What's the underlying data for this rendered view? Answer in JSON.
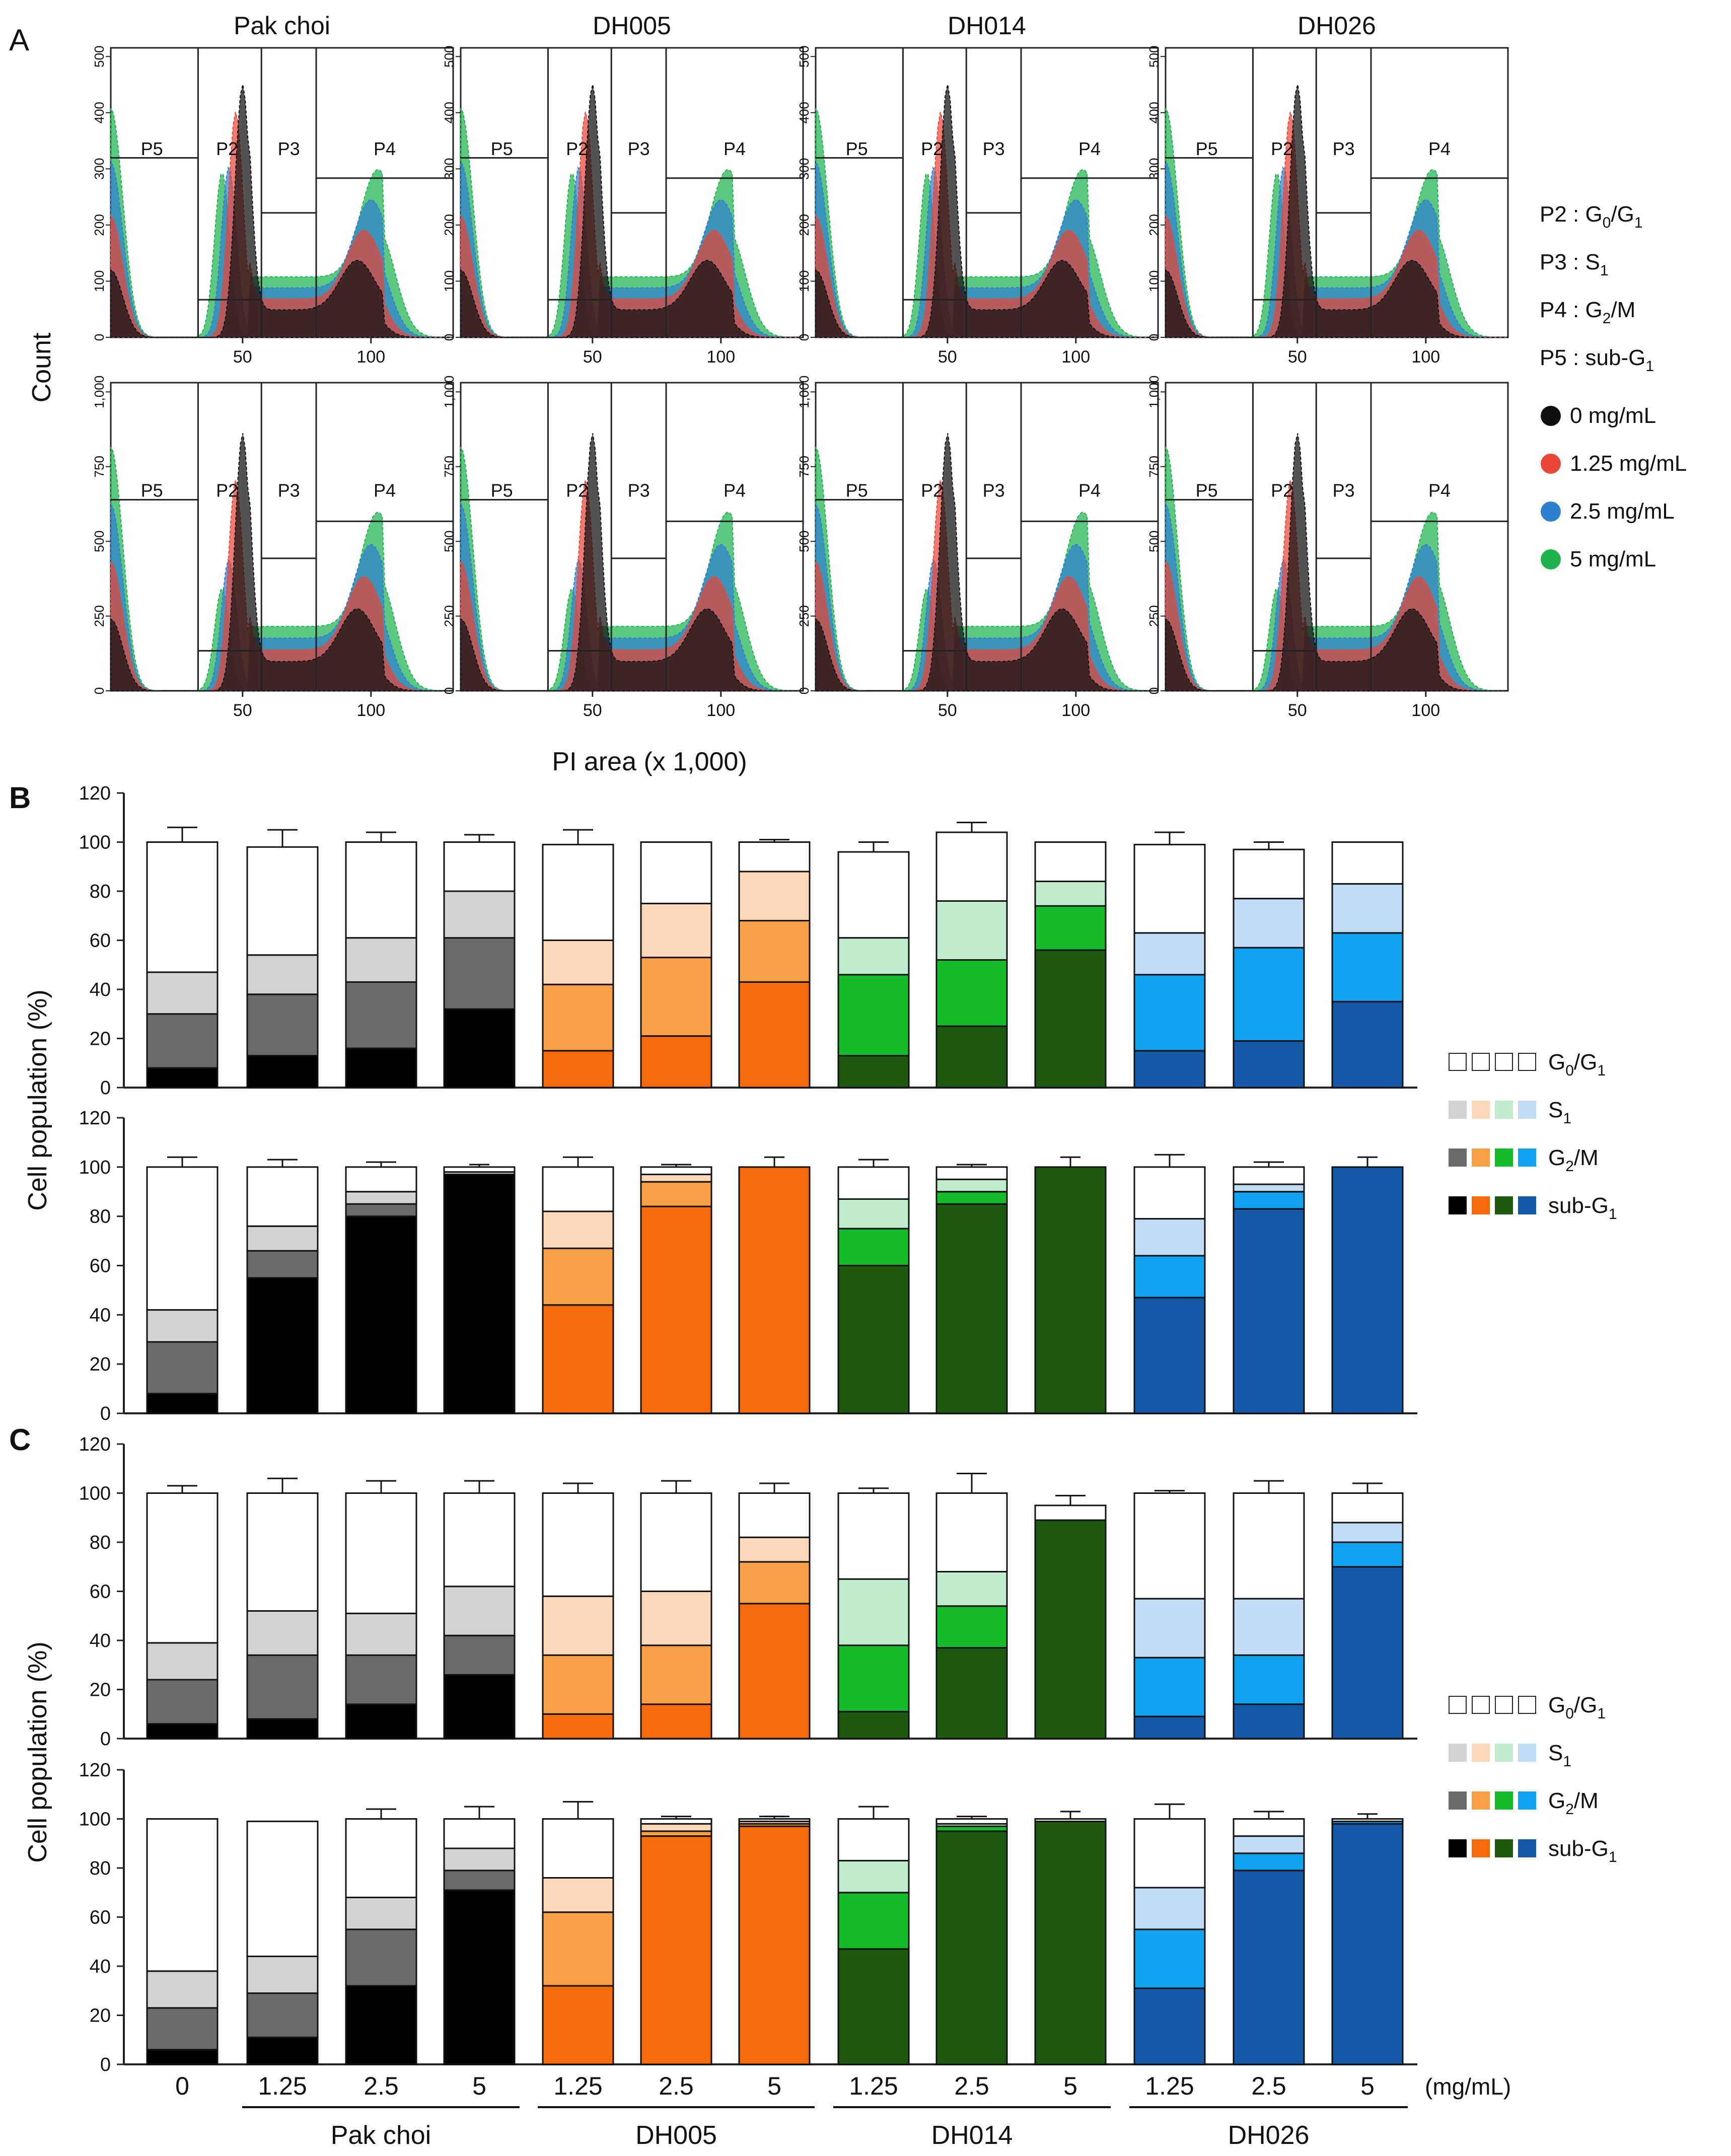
{
  "panel_labels": {
    "a": "A",
    "b": "B",
    "c": "C"
  },
  "histogram": {
    "groups": [
      "Pak choi",
      "DH005",
      "DH014",
      "DH026"
    ],
    "y_axis_label": "Count",
    "x_axis_label": "PI area (x 1,000)",
    "gate_labels": [
      "P5",
      "P2",
      "P3",
      "P4"
    ],
    "top_row": {
      "y_ticks": [
        "0",
        "100",
        "200",
        "300",
        "400",
        "500"
      ],
      "x_ticks": [
        "50",
        "100"
      ]
    },
    "bottom_row": {
      "y_ticks": [
        "0",
        "250",
        "500",
        "750",
        "1,000"
      ],
      "x_ticks": [
        "50",
        "100"
      ]
    },
    "gate_legend": [
      {
        "gate": "P2",
        "sep": " : ",
        "phase": "G",
        "sub": "0",
        "mid": "/G",
        "sub2": "1"
      },
      {
        "gate": "P3",
        "sep": " : ",
        "phase": "S",
        "sub": "1",
        "mid": "",
        "sub2": ""
      },
      {
        "gate": "P4",
        "sep": " : ",
        "phase": "G",
        "sub": "2",
        "mid": "/M",
        "sub2": ""
      },
      {
        "gate": "P5",
        "sep": " : ",
        "phase": "sub-G",
        "sub": "1",
        "mid": "",
        "sub2": ""
      }
    ],
    "dose_legend": [
      {
        "label": "0 mg/mL",
        "color": "#111111"
      },
      {
        "label": "1.25 mg/mL",
        "color": "#e8473a"
      },
      {
        "label": "2.5 mg/mL",
        "color": "#2f7fd1"
      },
      {
        "label": "5 mg/mL",
        "color": "#1fb34f"
      }
    ]
  },
  "bar_axis_label": "Cell population  (%)",
  "phase_legend": [
    {
      "phase": "G",
      "sub": "0",
      "rest": "/G",
      "sub2": "1",
      "colors": [
        "#ffffff",
        "#ffffff",
        "#ffffff",
        "#ffffff"
      ]
    },
    {
      "phase": "S",
      "sub": "1",
      "rest": "",
      "sub2": "",
      "colors": [
        "#d2d2d2",
        "#fcd8b8",
        "#bfeccc",
        "#c3dcf5"
      ]
    },
    {
      "phase": "G",
      "sub": "2",
      "rest": "/M",
      "sub2": "",
      "colors": [
        "#6a6a6a",
        "#f8a046",
        "#16bb2c",
        "#12a3f0"
      ]
    },
    {
      "phase": "sub-G",
      "sub": "1",
      "rest": "",
      "sub2": "",
      "colors": [
        "#000000",
        "#f56a0a",
        "#1d5a10",
        "#1459a8"
      ]
    }
  ],
  "x_axis": {
    "conditions": [
      "0",
      "1.25",
      "2.5",
      "5",
      "1.25",
      "2.5",
      "5",
      "1.25",
      "2.5",
      "5",
      "1.25",
      "2.5",
      "5"
    ],
    "unit": "(mg/mL)",
    "groups": [
      "Pak choi",
      "DH005",
      "DH014",
      "DH026"
    ]
  },
  "chart_data": [
    {
      "type": "bar",
      "stacked": true,
      "panel": "B-top",
      "title": "",
      "ylabel": "Cell population  (%)",
      "ylim": [
        0,
        120
      ],
      "y_ticks": [
        "0",
        "20",
        "40",
        "60",
        "80",
        "100",
        "120"
      ],
      "categories": [
        "0",
        "1.25",
        "2.5",
        "5",
        "1.25",
        "2.5",
        "5",
        "1.25",
        "2.5",
        "5",
        "1.25",
        "2.5",
        "5"
      ],
      "series": [
        {
          "name": "sub-G1",
          "values": [
            8,
            13,
            16,
            32,
            15,
            21,
            43,
            13,
            25,
            56,
            15,
            19,
            35
          ]
        },
        {
          "name": "G2/M",
          "values": [
            22,
            25,
            27,
            29,
            27,
            32,
            25,
            33,
            27,
            18,
            31,
            38,
            28
          ]
        },
        {
          "name": "S1",
          "values": [
            17,
            16,
            18,
            19,
            18,
            22,
            20,
            15,
            24,
            10,
            17,
            20,
            20
          ]
        },
        {
          "name": "G0/G1",
          "values": [
            53,
            44,
            39,
            20,
            39,
            25,
            12,
            35,
            28,
            16,
            36,
            20,
            17
          ]
        }
      ],
      "error": [
        6,
        7,
        4,
        3,
        6,
        0,
        1,
        4,
        4,
        0,
        5,
        3,
        0
      ]
    },
    {
      "type": "bar",
      "stacked": true,
      "panel": "B-bottom",
      "title": "",
      "ylabel": "Cell population  (%)",
      "ylim": [
        0,
        120
      ],
      "y_ticks": [
        "0",
        "20",
        "40",
        "60",
        "80",
        "100",
        "120"
      ],
      "categories": [
        "0",
        "1.25",
        "2.5",
        "5",
        "1.25",
        "2.5",
        "5",
        "1.25",
        "2.5",
        "5",
        "1.25",
        "2.5",
        "5"
      ],
      "series": [
        {
          "name": "sub-G1",
          "values": [
            8,
            55,
            80,
            97,
            44,
            84,
            100,
            60,
            85,
            100,
            47,
            83,
            100
          ]
        },
        {
          "name": "G2/M",
          "values": [
            21,
            11,
            5,
            0,
            23,
            10,
            0,
            15,
            5,
            0,
            17,
            7,
            0
          ]
        },
        {
          "name": "S1",
          "values": [
            13,
            10,
            5,
            1,
            15,
            3,
            0,
            12,
            5,
            0,
            15,
            3,
            0
          ]
        },
        {
          "name": "G0/G1",
          "values": [
            58,
            24,
            10,
            2,
            18,
            3,
            0,
            13,
            5,
            0,
            21,
            7,
            0
          ]
        }
      ],
      "error": [
        4,
        3,
        2,
        0,
        4,
        1,
        0,
        3,
        1,
        0,
        5,
        2,
        0
      ]
    },
    {
      "type": "bar",
      "stacked": true,
      "panel": "C-top",
      "title": "",
      "ylabel": "Cell population  (%)",
      "ylim": [
        0,
        120
      ],
      "y_ticks": [
        "0",
        "20",
        "40",
        "60",
        "80",
        "100",
        "120"
      ],
      "categories": [
        "0",
        "1.25",
        "2.5",
        "5",
        "1.25",
        "2.5",
        "5",
        "1.25",
        "2.5",
        "5",
        "1.25",
        "2.5",
        "5"
      ],
      "series": [
        {
          "name": "sub-G1",
          "values": [
            6,
            8,
            14,
            26,
            10,
            14,
            55,
            11,
            37,
            89,
            9,
            14,
            70
          ]
        },
        {
          "name": "G2/M",
          "values": [
            18,
            26,
            20,
            16,
            24,
            24,
            17,
            27,
            17,
            0,
            24,
            20,
            10
          ]
        },
        {
          "name": "S1",
          "values": [
            15,
            18,
            17,
            20,
            24,
            22,
            10,
            27,
            14,
            0,
            24,
            23,
            8
          ]
        },
        {
          "name": "G0/G1",
          "values": [
            61,
            48,
            49,
            38,
            42,
            40,
            18,
            35,
            32,
            6,
            43,
            43,
            12
          ]
        }
      ],
      "error": [
        3,
        6,
        5,
        5,
        4,
        5,
        4,
        2,
        8,
        4,
        1,
        5,
        4
      ]
    },
    {
      "type": "bar",
      "stacked": true,
      "panel": "C-bottom",
      "title": "",
      "ylabel": "Cell population  (%)",
      "ylim": [
        0,
        120
      ],
      "y_ticks": [
        "0",
        "20",
        "40",
        "60",
        "80",
        "100",
        "120"
      ],
      "categories": [
        "0",
        "1.25",
        "2.5",
        "5",
        "1.25",
        "2.5",
        "5",
        "1.25",
        "2.5",
        "5",
        "1.25",
        "2.5",
        "5"
      ],
      "series": [
        {
          "name": "sub-G1",
          "values": [
            6,
            11,
            32,
            71,
            32,
            93,
            97,
            47,
            95,
            99,
            31,
            79,
            98
          ]
        },
        {
          "name": "G2/M",
          "values": [
            17,
            18,
            23,
            8,
            30,
            2,
            1,
            23,
            2,
            0,
            24,
            7,
            1
          ]
        },
        {
          "name": "S1",
          "values": [
            15,
            15,
            13,
            9,
            14,
            3,
            1,
            13,
            1,
            0,
            17,
            7,
            0
          ]
        },
        {
          "name": "G0/G1",
          "values": [
            62,
            55,
            32,
            12,
            24,
            2,
            1,
            17,
            2,
            1,
            28,
            7,
            1
          ]
        }
      ],
      "error": [
        0,
        0,
        4,
        5,
        7,
        1,
        1,
        5,
        1,
        0,
        6,
        3,
        0
      ]
    }
  ]
}
